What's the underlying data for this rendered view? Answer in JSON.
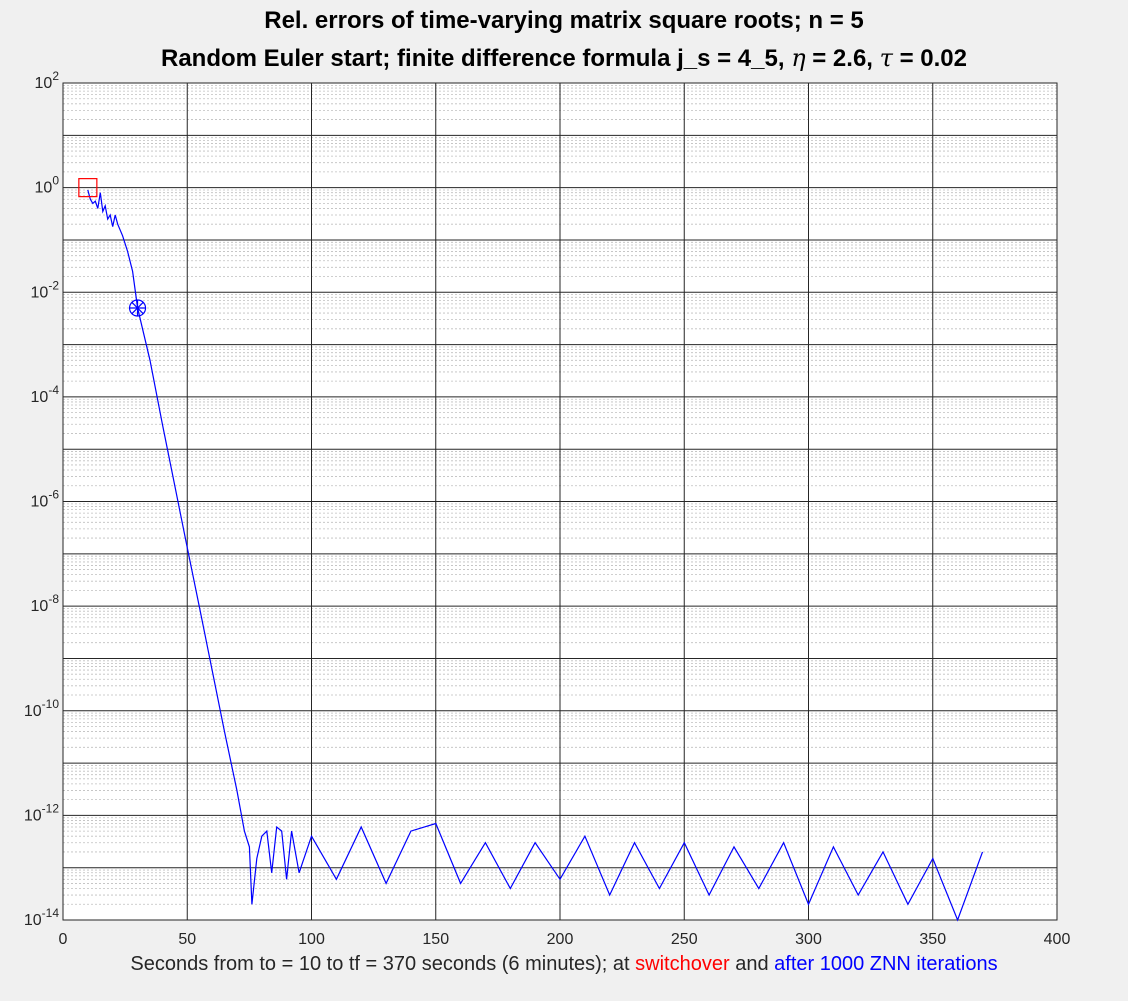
{
  "title_line1": "Rel. errors of time-varying matrix square roots; n = 5",
  "title_line2_prefix": "Random Euler start; finite difference formula  j_s = 4_5,",
  "title_eta_symbol": "η",
  "title_eta_value": "= 2.6,",
  "title_tau_symbol": "τ",
  "title_tau_value": "= 0.02",
  "xlabel": {
    "part1": "Seconds from to = 10 to tf = 370  seconds  (6 minutes); at",
    "switchover": "switchover",
    "part2": "and",
    "after": "after 1000 ZNN iterations"
  },
  "colors": {
    "series": "#0000ff",
    "switchover_marker": "#ff0000",
    "after_marker": "#0000ff",
    "background": "#f0f0f0",
    "axes": "#ffffff"
  },
  "chart_data": {
    "type": "line",
    "title": "Rel. errors of time-varying matrix square roots; n = 5",
    "xlim": [
      0,
      400
    ],
    "ylim_exponent": [
      -14,
      2
    ],
    "yscale": "log",
    "grid": "on (major and minor)",
    "x_ticks": [
      0,
      50,
      100,
      150,
      200,
      250,
      300,
      350,
      400
    ],
    "x_tick_labels": [
      "0",
      "50",
      "100",
      "150",
      "200",
      "250",
      "300",
      "350",
      "400"
    ],
    "y_ticks_exponent": [
      2,
      0,
      -2,
      -4,
      -6,
      -8,
      -10,
      -12,
      -14
    ],
    "y_tick_base": "10",
    "y_tick_exponents": [
      "2",
      "0",
      "-2",
      "-4",
      "-6",
      "-8",
      "-10",
      "-12",
      "-14"
    ],
    "series": [
      {
        "color": "#0000ff",
        "x": [
          10,
          11,
          12,
          13,
          14,
          15,
          16,
          17,
          18,
          19,
          20,
          21,
          22,
          24,
          26,
          28,
          30,
          35,
          40,
          45,
          50,
          55,
          60,
          65,
          70,
          73,
          75,
          76,
          78,
          80,
          82,
          84,
          86,
          88,
          90,
          92,
          95,
          100,
          110,
          120,
          130,
          140,
          150,
          160,
          170,
          180,
          190,
          200,
          210,
          220,
          230,
          240,
          250,
          260,
          270,
          280,
          290,
          300,
          310,
          320,
          330,
          340,
          350,
          360,
          370
        ],
        "y": [
          0.9,
          0.6,
          0.5,
          0.55,
          0.4,
          0.8,
          0.35,
          0.45,
          0.25,
          0.3,
          0.18,
          0.3,
          0.2,
          0.12,
          0.06,
          0.025,
          0.005,
          0.0005,
          3e-05,
          2e-06,
          1.3e-07,
          9e-09,
          6e-10,
          4e-11,
          3e-12,
          5e-13,
          2.5e-13,
          2e-14,
          1.5e-13,
          4e-13,
          5e-13,
          8e-14,
          6e-13,
          5e-13,
          6e-14,
          5e-13,
          8e-14,
          4e-13,
          6e-14,
          6e-13,
          5e-14,
          5e-13,
          7e-13,
          5e-14,
          3e-13,
          4e-14,
          3e-13,
          6e-14,
          4e-13,
          3e-14,
          3e-13,
          4e-14,
          3e-13,
          3e-14,
          2.5e-13,
          4e-14,
          3e-13,
          2e-14,
          2.5e-13,
          3e-14,
          2e-13,
          2e-14,
          1.5e-13,
          1e-14,
          2e-13
        ]
      }
    ],
    "switchover_point": {
      "x": 10,
      "y": 1.0
    },
    "after_point": {
      "x": 30,
      "y": 0.005
    }
  }
}
